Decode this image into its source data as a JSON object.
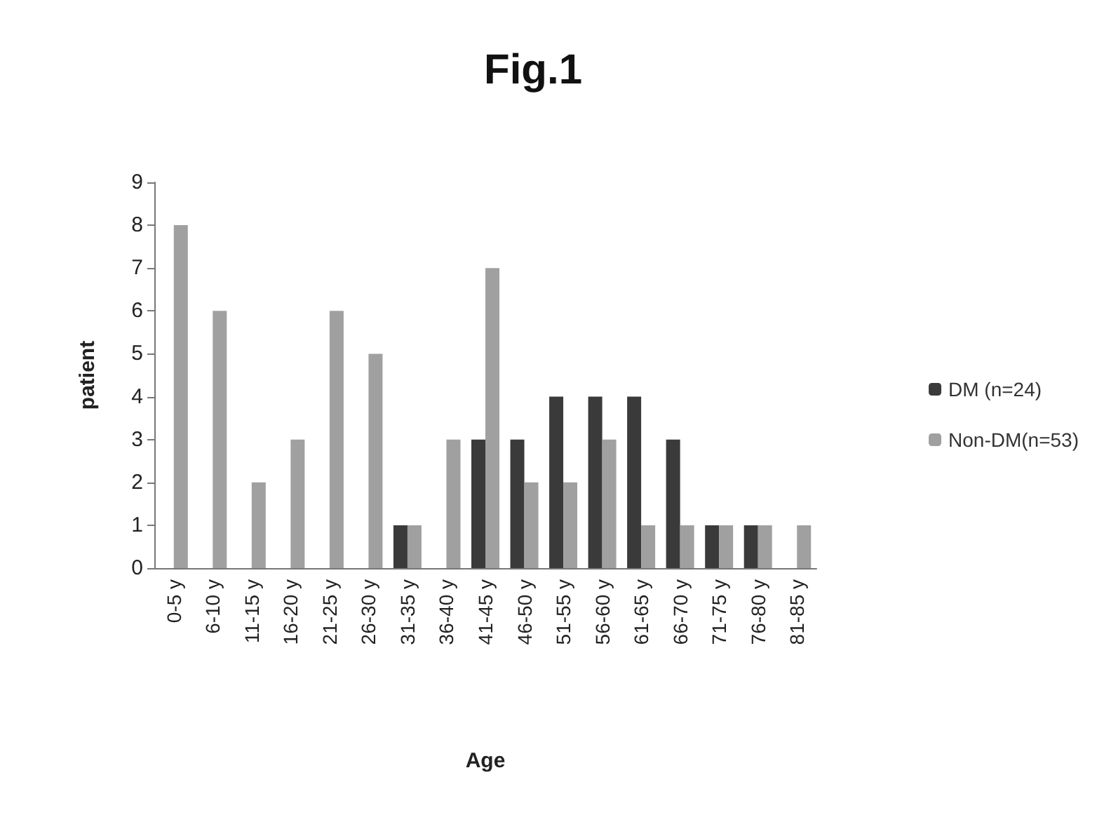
{
  "chart_data": {
    "type": "bar",
    "title": "Fig.1",
    "xlabel": "Age",
    "ylabel": "patient",
    "categories": [
      "0-5 y",
      "6-10 y",
      "11-15 y",
      "16-20 y",
      "21-25 y",
      "26-30 y",
      "31-35 y",
      "36-40 y",
      "41-45 y",
      "46-50 y",
      "51-55 y",
      "56-60 y",
      "61-65 y",
      "66-70 y",
      "71-75 y",
      "76-80 y",
      "81-85 y"
    ],
    "series": [
      {
        "name": "DM (n=24)",
        "color": "#3a3a3a",
        "values": [
          0,
          0,
          0,
          0,
          0,
          0,
          1,
          0,
          3,
          3,
          4,
          4,
          4,
          3,
          1,
          1,
          0
        ]
      },
      {
        "name": "Non-DM(n=53)",
        "color": "#a0a0a0",
        "values": [
          8,
          6,
          2,
          3,
          6,
          5,
          1,
          3,
          7,
          2,
          2,
          3,
          1,
          1,
          1,
          1,
          1
        ]
      }
    ],
    "ylim": [
      0,
      9
    ],
    "yticks": [
      0,
      1,
      2,
      3,
      4,
      5,
      6,
      7,
      8,
      9
    ],
    "grid": false,
    "legend": "right"
  }
}
